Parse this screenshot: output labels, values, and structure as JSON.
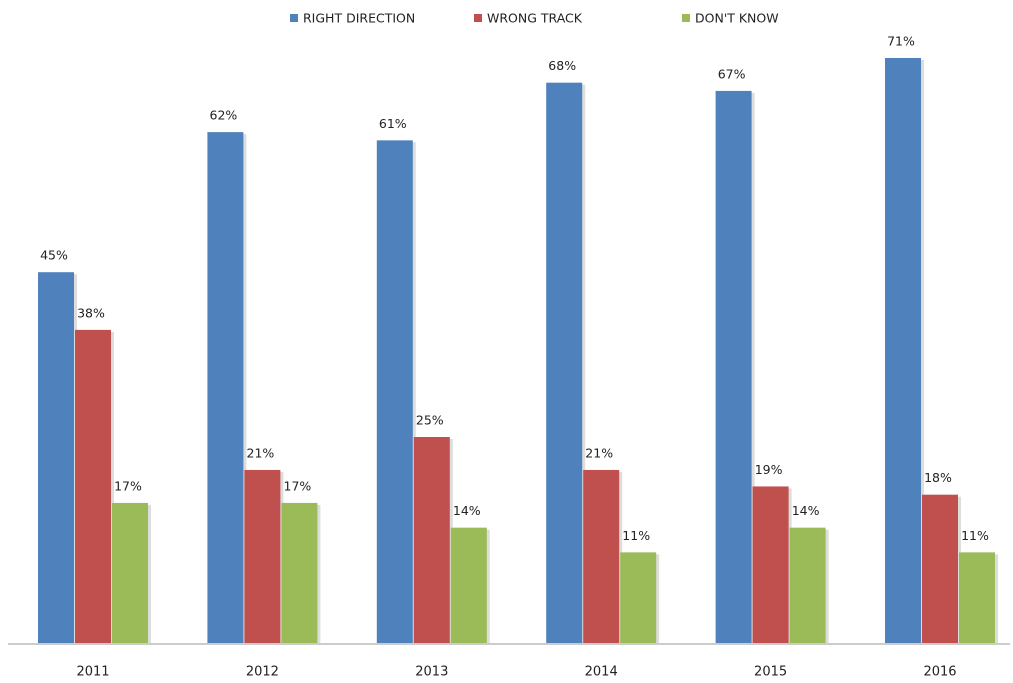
{
  "chart_data": {
    "type": "bar",
    "categories": [
      "2011",
      "2012",
      "2013",
      "2014",
      "2015",
      "2016"
    ],
    "series": [
      {
        "name": "RIGHT DIRECTION",
        "color": "#4f81bd",
        "values": [
          45,
          62,
          61,
          68,
          67,
          71
        ],
        "value_labels": [
          "45%",
          "62%",
          "61%",
          "68%",
          "67%",
          "71%"
        ]
      },
      {
        "name": "WRONG TRACK",
        "color": "#c0504d",
        "values": [
          38,
          21,
          25,
          21,
          19,
          18
        ],
        "value_labels": [
          "38%",
          "21%",
          "25%",
          "21%",
          "19%",
          "18%"
        ]
      },
      {
        "name": "DON'T KNOW",
        "color": "#9bbb59",
        "values": [
          17,
          17,
          14,
          11,
          14,
          11
        ],
        "value_labels": [
          "17%",
          "17%",
          "14%",
          "11%",
          "14%",
          "11%"
        ]
      }
    ],
    "legend": "top"
  }
}
